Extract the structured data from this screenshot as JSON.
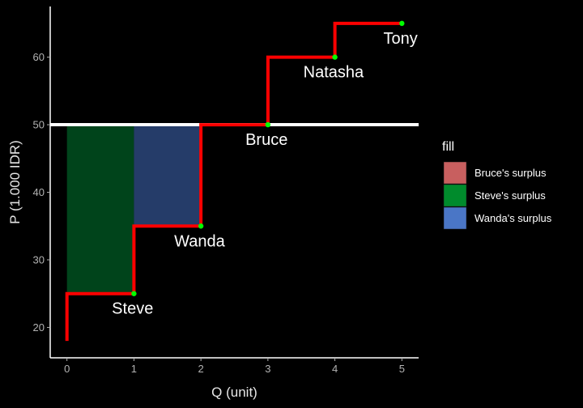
{
  "chart_data": {
    "type": "step",
    "xlabel": "Q (unit)",
    "ylabel": "P (1.000 IDR)",
    "xlim": [
      -0.25,
      5.25
    ],
    "ylim": [
      15.5,
      67.5
    ],
    "x_ticks": [
      0,
      1,
      2,
      3,
      4,
      5
    ],
    "y_ticks": [
      20,
      30,
      40,
      50,
      60
    ],
    "grid": false,
    "supply_step": {
      "color": "#ff0000",
      "points": [
        {
          "x": 0,
          "y": 18
        },
        {
          "x": 0,
          "y": 25
        },
        {
          "x": 1,
          "y": 25
        },
        {
          "x": 1,
          "y": 35
        },
        {
          "x": 2,
          "y": 35
        },
        {
          "x": 2,
          "y": 50
        },
        {
          "x": 3,
          "y": 50
        },
        {
          "x": 3,
          "y": 60
        },
        {
          "x": 4,
          "y": 60
        },
        {
          "x": 4,
          "y": 65
        },
        {
          "x": 5,
          "y": 65
        }
      ]
    },
    "price_line": {
      "y": 50,
      "color": "#ffffff"
    },
    "sellers": [
      {
        "name": "Steve",
        "q": 1,
        "p": 25
      },
      {
        "name": "Wanda",
        "q": 2,
        "p": 35
      },
      {
        "name": "Bruce",
        "q": 3,
        "p": 50
      },
      {
        "name": "Natasha",
        "q": 4,
        "p": 60
      },
      {
        "name": "Tony",
        "q": 5,
        "p": 65
      }
    ],
    "point_color": "#00ff00",
    "surplus_areas": [
      {
        "fill": "Steve's surplus",
        "x0": 0,
        "x1": 1,
        "y0": 25,
        "y1": 50,
        "color": "#00441b"
      },
      {
        "fill": "Wanda's surplus",
        "x0": 1,
        "x1": 2,
        "y0": 35,
        "y1": 50,
        "color": "#253c69"
      }
    ],
    "legend": {
      "title": "fill",
      "position": "right",
      "items": [
        {
          "label": "Bruce's surplus",
          "color": "#c85f5f"
        },
        {
          "label": "Steve's surplus",
          "color": "#008b2c"
        },
        {
          "label": "Wanda's surplus",
          "color": "#4a76c6"
        }
      ]
    }
  }
}
